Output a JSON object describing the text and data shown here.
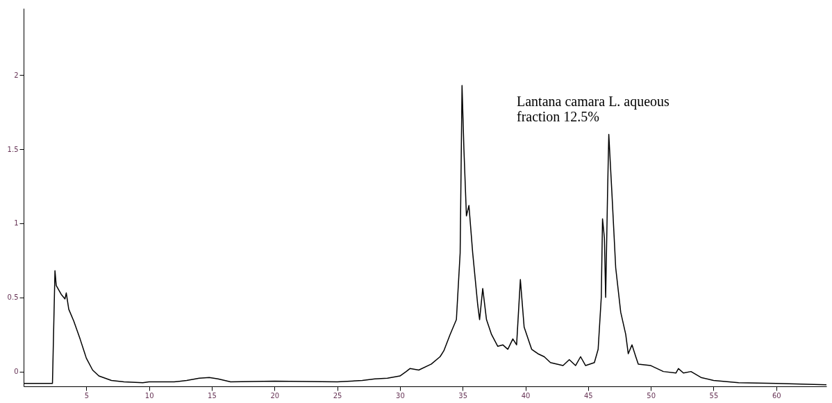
{
  "chart_data": {
    "type": "line",
    "annotations": [
      "Lantana camara L. aqueous\nfraction 12.5%"
    ],
    "x": [
      0,
      2.3,
      2.4,
      2.5,
      2.6,
      3.0,
      3.3,
      3.4,
      3.6,
      4.0,
      4.5,
      5.0,
      5.5,
      6,
      7,
      8,
      9.5,
      10,
      12,
      13,
      14,
      14.8,
      15.5,
      16.5,
      20,
      25,
      27,
      28,
      29,
      30,
      30.5,
      30.8,
      31.5,
      32.5,
      33.2,
      33.5,
      34,
      34.5,
      34.8,
      34.95,
      35.1,
      35.3,
      35.5,
      35.8,
      36.2,
      36.35,
      36.6,
      36.9,
      37.3,
      37.8,
      38.2,
      38.6,
      39.0,
      39.3,
      39.6,
      39.9,
      40.5,
      41,
      41.5,
      42,
      43,
      43.5,
      44,
      44.4,
      44.8,
      45.5,
      45.8,
      46.05,
      46.15,
      46.3,
      46.4,
      46.55,
      46.65,
      46.9,
      47.2,
      47.6,
      48.0,
      48.2,
      48.5,
      48.8,
      49,
      50,
      51,
      52,
      52.2,
      52.6,
      53.2,
      54,
      55,
      57,
      60,
      64
    ],
    "series": [
      {
        "color": "#000000",
        "values": [
          -0.08,
          -0.08,
          0.3,
          0.68,
          0.58,
          0.52,
          0.49,
          0.53,
          0.42,
          0.34,
          0.22,
          0.09,
          0.01,
          -0.03,
          -0.06,
          -0.07,
          -0.075,
          -0.07,
          -0.07,
          -0.06,
          -0.045,
          -0.04,
          -0.05,
          -0.07,
          -0.065,
          -0.07,
          -0.06,
          -0.05,
          -0.045,
          -0.03,
          0.0,
          0.02,
          0.01,
          0.05,
          0.1,
          0.14,
          0.25,
          0.35,
          0.8,
          1.93,
          1.5,
          1.05,
          1.12,
          0.8,
          0.45,
          0.35,
          0.56,
          0.35,
          0.25,
          0.17,
          0.18,
          0.15,
          0.22,
          0.18,
          0.62,
          0.3,
          0.15,
          0.12,
          0.1,
          0.06,
          0.04,
          0.08,
          0.04,
          0.1,
          0.04,
          0.06,
          0.15,
          0.5,
          1.03,
          0.9,
          0.5,
          1.2,
          1.6,
          1.2,
          0.7,
          0.4,
          0.25,
          0.12,
          0.18,
          0.1,
          0.05,
          0.04,
          0.0,
          -0.01,
          0.02,
          -0.01,
          0.0,
          -0.04,
          -0.06,
          -0.075,
          -0.08,
          -0.09
        ]
      }
    ],
    "xlim": [
      0,
      64
    ],
    "ylim": [
      -0.1,
      2.45
    ],
    "xticks": [
      5,
      10,
      15,
      20,
      25,
      30,
      35,
      40,
      45,
      50,
      55,
      60
    ],
    "yticks": [
      0,
      0.5,
      1,
      1.5,
      2
    ],
    "grid": false,
    "marker": "none",
    "line_style": "solid"
  }
}
